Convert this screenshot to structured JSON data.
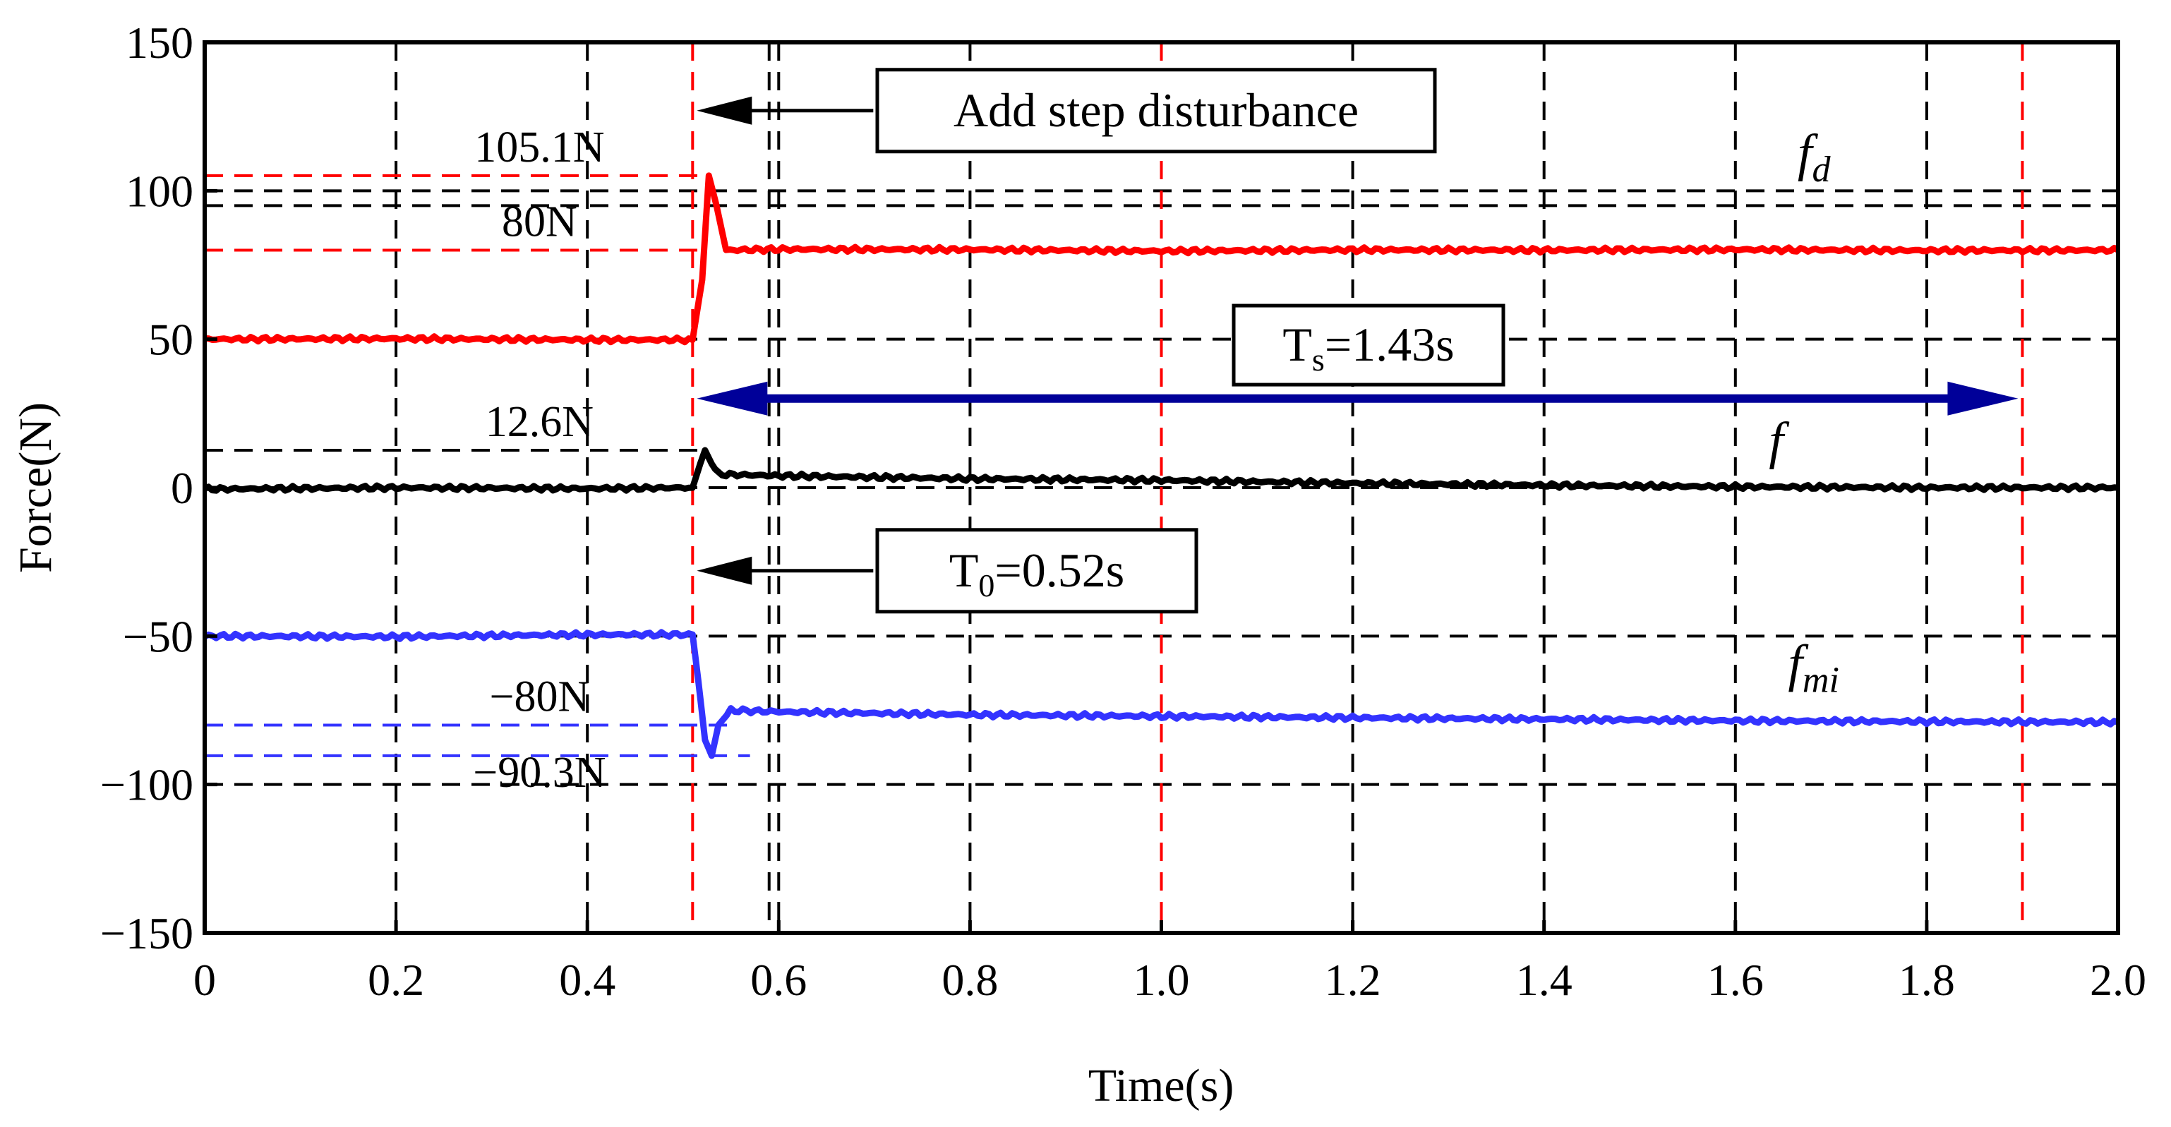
{
  "chart_data": {
    "type": "line",
    "xlabel": "Time(s)",
    "ylabel": "Force(N)",
    "xlim": [
      0,
      2.0
    ],
    "ylim": [
      -150,
      150
    ],
    "x_ticks": [
      0,
      0.2,
      0.4,
      0.6,
      0.8,
      1.0,
      1.2,
      1.4,
      1.6,
      1.8,
      2.0
    ],
    "x_tick_labels": [
      "0",
      "0.2",
      "0.4",
      "0.6",
      "0.8",
      "1.0",
      "1.2",
      "1.4",
      "1.6",
      "1.8",
      "2.0"
    ],
    "y_ticks": [
      -150,
      -100,
      -50,
      0,
      50,
      100,
      150
    ],
    "y_tick_labels": [
      "−150",
      "−100",
      "−50",
      "0",
      "50",
      "100",
      "150"
    ],
    "grid": "dashed",
    "grid_x_extra": [
      0.59
    ],
    "grid_y_extra": [
      95
    ],
    "colors": {
      "red": "#ff0000",
      "black": "#000000",
      "blue": "#3333ff",
      "navy": "#000099",
      "grid": "#000000"
    },
    "series": [
      {
        "name": "f_d",
        "label_main": "f",
        "label_sub": "d",
        "color": "#ff0000",
        "points": [
          [
            0,
            50
          ],
          [
            0.2,
            50.2
          ],
          [
            0.4,
            49.8
          ],
          [
            0.51,
            49.8
          ],
          [
            0.52,
            70
          ],
          [
            0.527,
            105.1
          ],
          [
            0.535,
            95
          ],
          [
            0.545,
            80
          ],
          [
            0.6,
            80.3
          ],
          [
            0.8,
            80.2
          ],
          [
            1.0,
            79.7
          ],
          [
            1.2,
            80.1
          ],
          [
            1.4,
            80
          ],
          [
            1.6,
            80.2
          ],
          [
            1.8,
            79.9
          ],
          [
            2.0,
            80
          ]
        ]
      },
      {
        "name": "f",
        "label_main": "f",
        "label_sub": "",
        "color": "#000000",
        "points": [
          [
            0,
            -0.5
          ],
          [
            0.2,
            0
          ],
          [
            0.4,
            -0.3
          ],
          [
            0.51,
            0
          ],
          [
            0.518,
            8
          ],
          [
            0.523,
            12.6
          ],
          [
            0.53,
            8
          ],
          [
            0.537,
            4.5
          ],
          [
            0.6,
            4
          ],
          [
            0.8,
            3
          ],
          [
            1.0,
            2.5
          ],
          [
            1.2,
            1.5
          ],
          [
            1.4,
            0.8
          ],
          [
            1.6,
            0.3
          ],
          [
            1.8,
            0
          ],
          [
            2.0,
            0
          ]
        ]
      },
      {
        "name": "f_mi",
        "label_main": "f",
        "label_sub": "mi",
        "color": "#3333ff",
        "points": [
          [
            0,
            -50
          ],
          [
            0.2,
            -50.2
          ],
          [
            0.4,
            -49.5
          ],
          [
            0.51,
            -49.5
          ],
          [
            0.516,
            -65
          ],
          [
            0.523,
            -85
          ],
          [
            0.53,
            -90.3
          ],
          [
            0.537,
            -80
          ],
          [
            0.55,
            -75
          ],
          [
            0.6,
            -75.5
          ],
          [
            0.8,
            -76.5
          ],
          [
            1.0,
            -77
          ],
          [
            1.2,
            -77.5
          ],
          [
            1.4,
            -78
          ],
          [
            1.6,
            -78.5
          ],
          [
            1.8,
            -78.8
          ],
          [
            2.0,
            -79
          ]
        ]
      }
    ],
    "reference_lines": [
      {
        "y": 105.1,
        "x_from": 0,
        "x_to": 0.52,
        "color": "#ff0000",
        "label": "105.1N"
      },
      {
        "y": 80,
        "x_from": 0,
        "x_to": 0.52,
        "color": "#ff0000",
        "label": "80N"
      },
      {
        "y": 12.6,
        "x_from": 0,
        "x_to": 0.52,
        "color": "#000000",
        "label": "12.6N"
      },
      {
        "y": -80,
        "x_from": 0,
        "x_to": 0.55,
        "color": "#3333ff",
        "label": "−80N"
      },
      {
        "y": -90.3,
        "x_from": 0,
        "x_to": 0.57,
        "color": "#3333ff",
        "label": "−90.3N"
      }
    ],
    "vertical_markers": [
      {
        "x": 0.51,
        "color": "#ff0000"
      },
      {
        "x": 1.0,
        "color": "#ff0000"
      },
      {
        "x": 1.9,
        "color": "#ff0000"
      }
    ],
    "annotations": {
      "step": {
        "text": "Add step disturbance",
        "arrow_x": 0.51,
        "y": 127
      },
      "t0": {
        "main": "T",
        "sub": "0",
        "rest": "=0.52s",
        "arrow_x": 0.51,
        "y": -28
      },
      "ts": {
        "main": "T",
        "sub": "s",
        "rest": "=1.43s",
        "x_from": 0.51,
        "x_to": 1.9,
        "y": 30
      }
    }
  }
}
